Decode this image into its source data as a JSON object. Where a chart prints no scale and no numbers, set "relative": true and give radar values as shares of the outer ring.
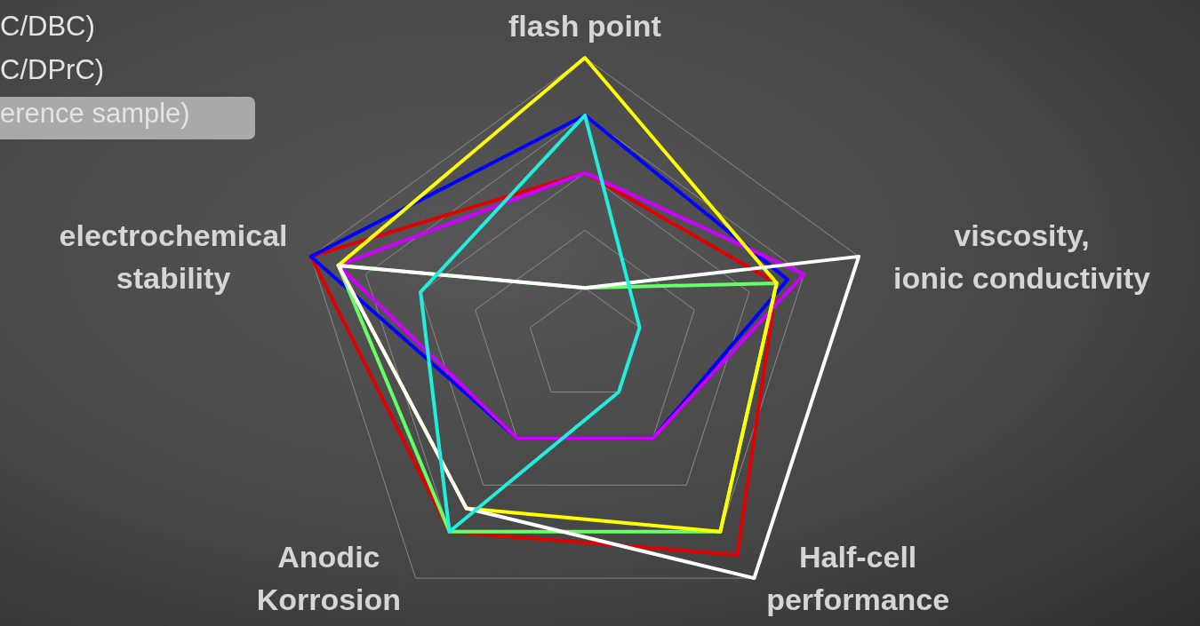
{
  "chart_data": {
    "type": "radar",
    "relative": true,
    "grid": true,
    "categories": [
      "flash point",
      "viscosity,\nionic conductivity",
      "Half-cell\nperformance",
      "Anodic\nKorrosion",
      "electrochemical\nstability"
    ],
    "series": [
      {
        "color": "#e00000",
        "values": [
          0.6,
          0.7,
          0.9,
          0.8,
          1
        ]
      },
      {
        "color": "#0000ff",
        "values": [
          0.8,
          0.74,
          0.4,
          0.4,
          1
        ]
      },
      {
        "color": "#cc00ff",
        "values": [
          0.6,
          0.8,
          0.4,
          0.4,
          0.9
        ]
      },
      {
        "color": "#66ff66",
        "values": [
          0.2,
          0.7,
          0.8,
          0.8,
          0.9
        ]
      },
      {
        "color": "#ffff00",
        "values": [
          1,
          0.7,
          0.8,
          0.7,
          0.9
        ]
      },
      {
        "color": "#ffffff",
        "values": [
          0.2,
          1,
          1,
          0.7,
          0.9
        ]
      },
      {
        "color": "#22eedd",
        "values": [
          0.8,
          0.2,
          0.2,
          0.8,
          0.6
        ]
      }
    ],
    "annotations": [
      "C/DBC)",
      "C/DPrC)",
      "erence sample)"
    ]
  }
}
